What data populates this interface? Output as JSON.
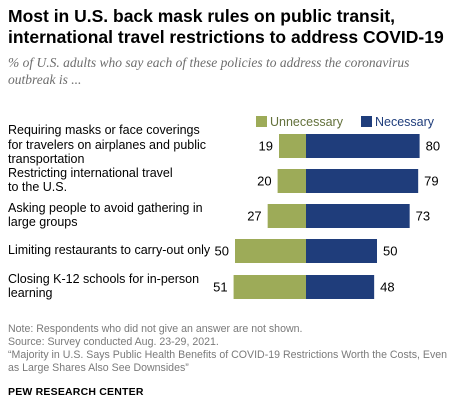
{
  "header": {
    "title_line1": "Most in U.S. back mask rules on public transit,",
    "title_line2": "international travel restrictions to address COVID-19",
    "subtitle_line1": "% of U.S. adults who say each of these policies to address the coronavirus",
    "subtitle_line2": "outbreak is ..."
  },
  "legend": {
    "unnecessary": "Unnecessary",
    "necessary": "Necessary"
  },
  "chart_data": {
    "type": "bar",
    "orientation": "horizontal-diverging",
    "title": "Most in U.S. back mask rules on public transit, international travel restrictions to address COVID-19",
    "subtitle": "% of U.S. adults who say each of these policies to address the coronavirus outbreak is ...",
    "categories": [
      "Requiring masks or face coverings for travelers on airplanes and public transportation",
      "Restricting international travel to the U.S.",
      "Asking people to avoid gathering in large groups",
      "Limiting restaurants to carry-out only",
      "Closing K-12 schools for in-person learning"
    ],
    "category_lines": [
      [
        "Requiring masks or face coverings",
        "for travelers on airplanes and public",
        "transportation"
      ],
      [
        "Restricting international travel",
        "to the U.S."
      ],
      [
        "Asking people to avoid gathering in",
        "large groups"
      ],
      [
        "Limiting restaurants to carry-out only"
      ],
      [
        "Closing K-12 schools for in-person",
        "learning"
      ]
    ],
    "series": [
      {
        "name": "Unnecessary",
        "values": [
          19,
          20,
          27,
          50,
          51
        ],
        "color": "#9dab58"
      },
      {
        "name": "Necessary",
        "values": [
          80,
          79,
          73,
          50,
          48
        ],
        "color": "#1f3d7b"
      }
    ],
    "legend_position": "top-right",
    "grid": false
  },
  "footer": {
    "note": "Note: Respondents who did not give an answer are not shown.",
    "source": "Source: Survey conducted Aug. 23-29, 2021.",
    "report_line1": "“Majority in U.S. Says Public Health Benefits of COVID-19 Restrictions Worth the Costs, Even",
    "report_line2": "as Large Shares Also See Downsides”",
    "org": "PEW RESEARCH CENTER"
  }
}
